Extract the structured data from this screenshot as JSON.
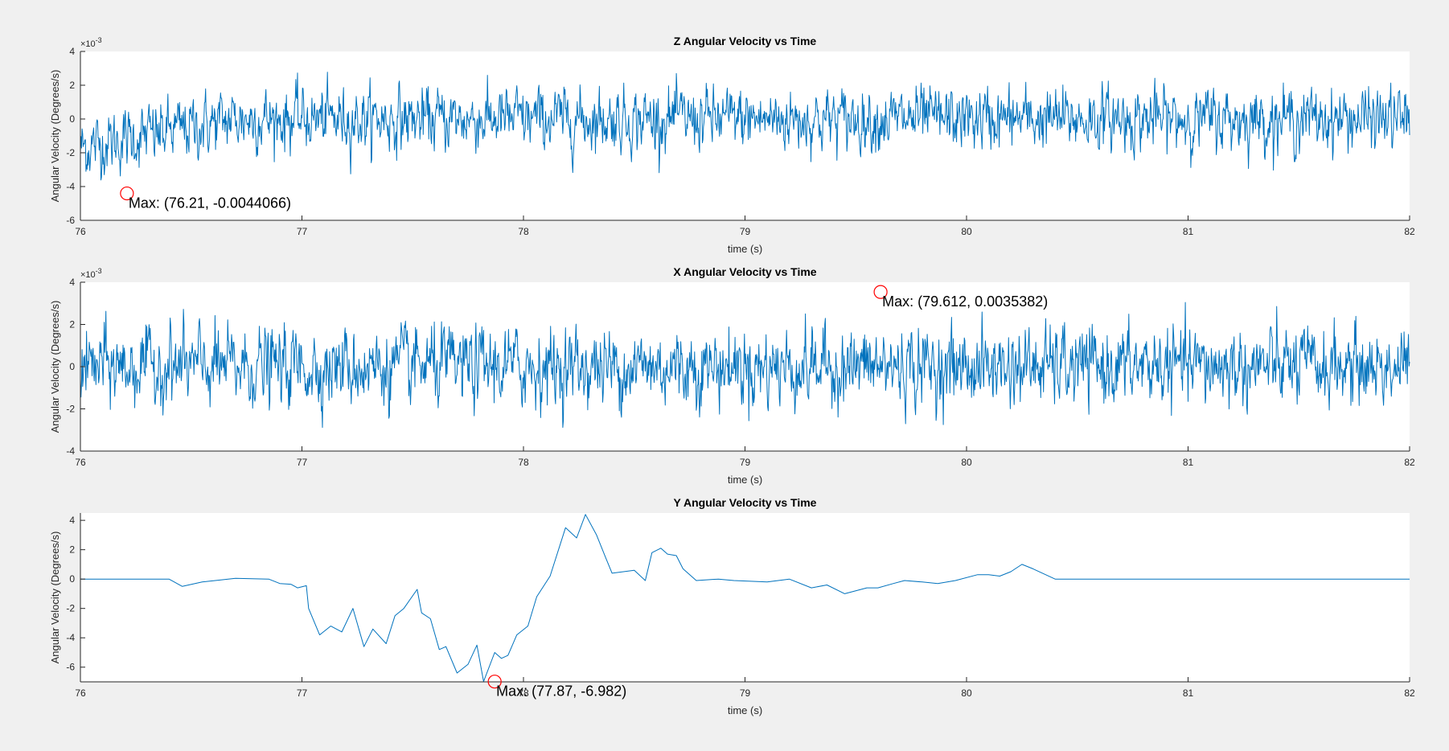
{
  "figure": {
    "background": "#f0f0f0",
    "axes_background": "#ffffff",
    "line_color": "#0072bd",
    "marker_color": "#ff0000"
  },
  "chart_data": [
    {
      "type": "line",
      "title": "Z Angular Velocity vs Time",
      "xlabel": "time (s)",
      "ylabel": "Angular Velocity (Degrees/s)",
      "xlim": [
        76,
        82
      ],
      "ylim": [
        -6,
        4
      ],
      "x_ticks": [
        "76",
        "77",
        "78",
        "79",
        "80",
        "81",
        "82"
      ],
      "y_ticks": [
        "-6",
        "-4",
        "-2",
        "0",
        "2",
        "4"
      ],
      "y_exponent": "10",
      "y_exponent_power": "-3",
      "grid": false,
      "signal": "noise",
      "noise_amplitude": 1.0,
      "drift_start": -1.7,
      "series": [
        {
          "x_start": 76,
          "x_end": 82
        }
      ],
      "annotation": {
        "text": "Max: (76.21, -0.0044066)",
        "x": 76.21,
        "y": -4.4066
      }
    },
    {
      "type": "line",
      "title": "X Angular Velocity vs Time",
      "xlabel": "time (s)",
      "ylabel": "Angular Velocity (Degrees/s)",
      "xlim": [
        76,
        82
      ],
      "ylim": [
        -4,
        4
      ],
      "x_ticks": [
        "76",
        "77",
        "78",
        "79",
        "80",
        "81",
        "82"
      ],
      "y_ticks": [
        "-4",
        "-2",
        "0",
        "2",
        "4"
      ],
      "y_exponent": "10",
      "y_exponent_power": "-3",
      "grid": false,
      "signal": "noise",
      "noise_amplitude": 1.0,
      "drift_start": 0,
      "series": [
        {
          "x_start": 76,
          "x_end": 82
        }
      ],
      "annotation": {
        "text": "Max: (79.612, 0.0035382)",
        "x": 79.612,
        "y": 3.5382
      }
    },
    {
      "type": "line",
      "title": "Y Angular Velocity vs Time",
      "xlabel": "time (s)",
      "ylabel": "Angular Velocity (Degrees/s)",
      "xlim": [
        76,
        82
      ],
      "ylim": [
        -7,
        4.5
      ],
      "x_ticks": [
        "76",
        "77",
        "78",
        "79",
        "80",
        "81",
        "82"
      ],
      "y_ticks": [
        "-6",
        "-4",
        "-2",
        "0",
        "2",
        "4"
      ],
      "grid": false,
      "signal": "line",
      "series": [
        {
          "x": [
            76.0,
            76.4,
            76.46,
            76.55,
            76.7,
            76.85,
            76.9,
            76.95,
            76.98,
            77.02,
            77.03,
            77.08,
            77.13,
            77.18,
            77.23,
            77.28,
            77.32,
            77.38,
            77.42,
            77.46,
            77.52,
            77.54,
            77.58,
            77.62,
            77.65,
            77.7,
            77.75,
            77.79,
            77.82,
            77.87,
            77.9,
            77.93,
            77.97,
            78.02,
            78.06,
            78.12,
            78.19,
            78.24,
            78.28,
            78.33,
            78.37,
            78.4,
            78.5,
            78.55,
            78.58,
            78.62,
            78.65,
            78.69,
            78.72,
            78.78,
            78.88,
            78.95,
            79.1,
            79.2,
            79.3,
            79.37,
            79.45,
            79.55,
            79.6,
            79.67,
            79.72,
            79.8,
            79.87,
            79.95,
            80.05,
            80.1,
            80.15,
            80.2,
            80.25,
            80.3,
            80.4,
            80.5,
            81.0,
            82.0
          ],
          "y": [
            0.0,
            0.0,
            -0.5,
            -0.2,
            0.05,
            0.0,
            -0.3,
            -0.35,
            -0.6,
            -0.45,
            -2.0,
            -3.8,
            -3.2,
            -3.6,
            -2.0,
            -4.6,
            -3.4,
            -4.4,
            -2.5,
            -2.0,
            -0.7,
            -2.3,
            -2.7,
            -4.8,
            -4.6,
            -6.4,
            -5.8,
            -4.5,
            -6.98,
            -5.0,
            -5.4,
            -5.2,
            -3.8,
            -3.2,
            -1.2,
            0.2,
            3.5,
            2.8,
            4.4,
            3.0,
            1.5,
            0.4,
            0.6,
            -0.1,
            1.8,
            2.1,
            1.7,
            1.6,
            0.7,
            -0.1,
            0.0,
            -0.1,
            -0.2,
            0.0,
            -0.6,
            -0.4,
            -1.0,
            -0.6,
            -0.6,
            -0.3,
            -0.1,
            -0.2,
            -0.3,
            -0.1,
            0.3,
            0.3,
            0.2,
            0.5,
            1.0,
            0.7,
            0.0,
            0.0,
            0.0,
            0.0
          ]
        }
      ],
      "annotation": {
        "text": "Max: (77.87, -6.982)",
        "x": 77.87,
        "y": -6.982
      }
    }
  ]
}
